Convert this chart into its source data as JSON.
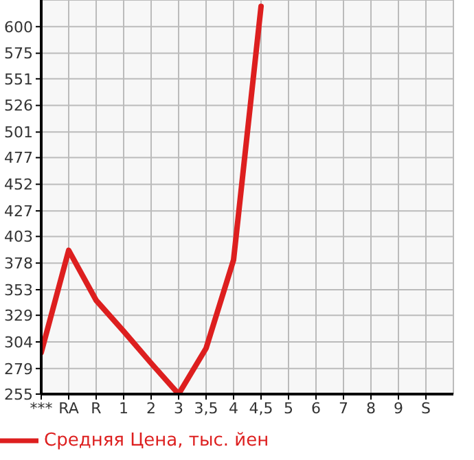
{
  "chart_data": {
    "type": "line",
    "categories": [
      "***",
      "RA",
      "R",
      "1",
      "2",
      "3",
      "3,5",
      "4",
      "4,5",
      "5",
      "6",
      "7",
      "8",
      "9",
      "S"
    ],
    "series": [
      {
        "name": "Средняя Цена, тыс. йен",
        "color": "#dd1f1f",
        "values": [
          294,
          390,
          343,
          314,
          284,
          255,
          298,
          381,
          619,
          null,
          null,
          null,
          null,
          null,
          null
        ]
      }
    ],
    "ylim": [
      255,
      625
    ],
    "yticks": [
      255,
      279,
      304,
      329,
      353,
      378,
      403,
      427,
      452,
      477,
      501,
      526,
      551,
      575,
      600
    ],
    "grid": true,
    "legend": "bottom left",
    "marker": "none",
    "line_style": "solid"
  }
}
